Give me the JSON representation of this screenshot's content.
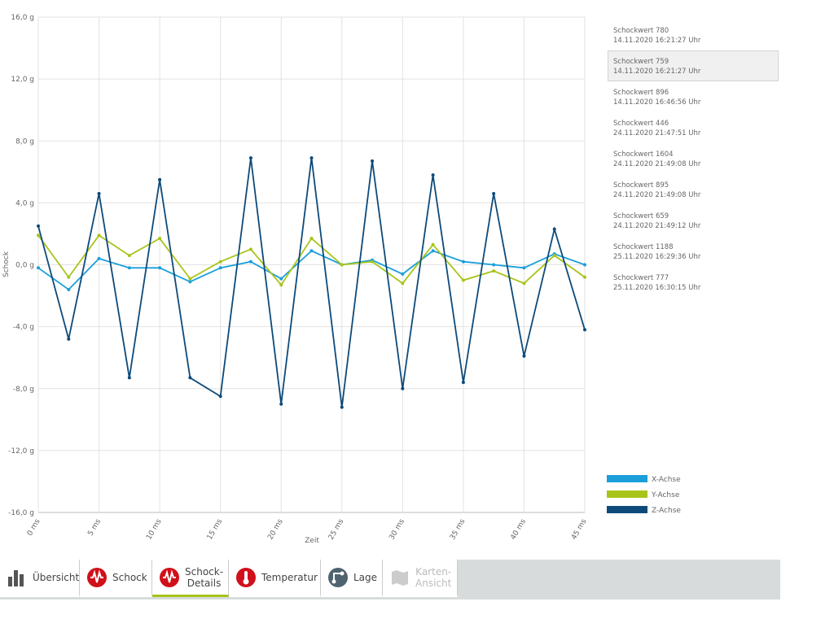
{
  "chart_data": {
    "type": "line",
    "xlabel": "Zeit",
    "ylabel": "Schock",
    "x": [
      0,
      2.5,
      5,
      7.5,
      10,
      12.5,
      15,
      17.5,
      20,
      22.5,
      25,
      27.5,
      30,
      32.5,
      35,
      37.5,
      40,
      42.5,
      45
    ],
    "xlim": [
      0,
      45
    ],
    "xticks": [
      {
        "value": 0,
        "label": "0 ms"
      },
      {
        "value": 5,
        "label": "5 ms"
      },
      {
        "value": 10,
        "label": "10 ms"
      },
      {
        "value": 15,
        "label": "15 ms"
      },
      {
        "value": 20,
        "label": "20 ms"
      },
      {
        "value": 25,
        "label": "25 ms"
      },
      {
        "value": 30,
        "label": "30 ms"
      },
      {
        "value": 35,
        "label": "35 ms"
      },
      {
        "value": 40,
        "label": "40 ms"
      },
      {
        "value": 45,
        "label": "45 ms"
      }
    ],
    "ylim": [
      -16,
      16
    ],
    "yticks": [
      {
        "value": -16,
        "label": "-16,0 g"
      },
      {
        "value": -12,
        "label": "-12,0 g"
      },
      {
        "value": -8,
        "label": "-8,0 g"
      },
      {
        "value": -4,
        "label": "-4,0 g"
      },
      {
        "value": 0,
        "label": "0,0 g"
      },
      {
        "value": 4,
        "label": "4,0 g"
      },
      {
        "value": 8,
        "label": "8,0 g"
      },
      {
        "value": 12,
        "label": "12,0 g"
      },
      {
        "value": 16,
        "label": "16,0 g"
      }
    ],
    "grid": true,
    "series": [
      {
        "name": "X-Achse",
        "color": "#1a9fdb",
        "values": [
          -0.2,
          -1.6,
          0.4,
          -0.2,
          -0.2,
          -1.1,
          -0.2,
          0.2,
          -0.9,
          0.9,
          0,
          0.3,
          -0.6,
          0.9,
          0.2,
          0,
          -0.2,
          0.7,
          0
        ]
      },
      {
        "name": "Y-Achse",
        "color": "#a8c41a",
        "values": [
          1.9,
          -0.8,
          1.9,
          0.6,
          1.7,
          -0.9,
          0.2,
          1.0,
          -1.3,
          1.7,
          0,
          0.2,
          -1.2,
          1.3,
          -1.0,
          -0.4,
          -1.2,
          0.6,
          -0.8
        ]
      },
      {
        "name": "Z-Achse",
        "color": "#0d4a7a",
        "values": [
          2.5,
          -4.8,
          4.6,
          -7.3,
          5.5,
          -7.3,
          -8.5,
          6.9,
          -9.0,
          6.9,
          -9.2,
          6.7,
          -8.0,
          5.8,
          -7.6,
          4.6,
          -5.9,
          2.3,
          -4.2
        ]
      }
    ]
  },
  "events": [
    {
      "name": "Schockwert 780",
      "time": "14.11.2020 16:21:27 Uhr"
    },
    {
      "name": "Schockwert 759",
      "time": "14.11.2020 16:21:27 Uhr"
    },
    {
      "name": "Schockwert 896",
      "time": "14.11.2020 16:46:56 Uhr"
    },
    {
      "name": "Schockwert 446",
      "time": "24.11.2020 21:47:51 Uhr"
    },
    {
      "name": "Schockwert 1604",
      "time": "24.11.2020 21:49:08 Uhr"
    },
    {
      "name": "Schockwert 895",
      "time": "24.11.2020 21:49:08 Uhr"
    },
    {
      "name": "Schockwert 659",
      "time": "24.11.2020 21:49:12 Uhr"
    },
    {
      "name": "Schockwert 1188",
      "time": "25.11.2020 16:29:36 Uhr"
    },
    {
      "name": "Schockwert 777",
      "time": "25.11.2020 16:30:15 Uhr"
    }
  ],
  "selected_event": 1,
  "tabs": [
    "Übersicht",
    "Schock",
    "Schock-\nDetails",
    "Temperatur",
    "Lage",
    "Karten-\nAnsicht"
  ],
  "active_tab": 2,
  "disabled_tab": 5
}
